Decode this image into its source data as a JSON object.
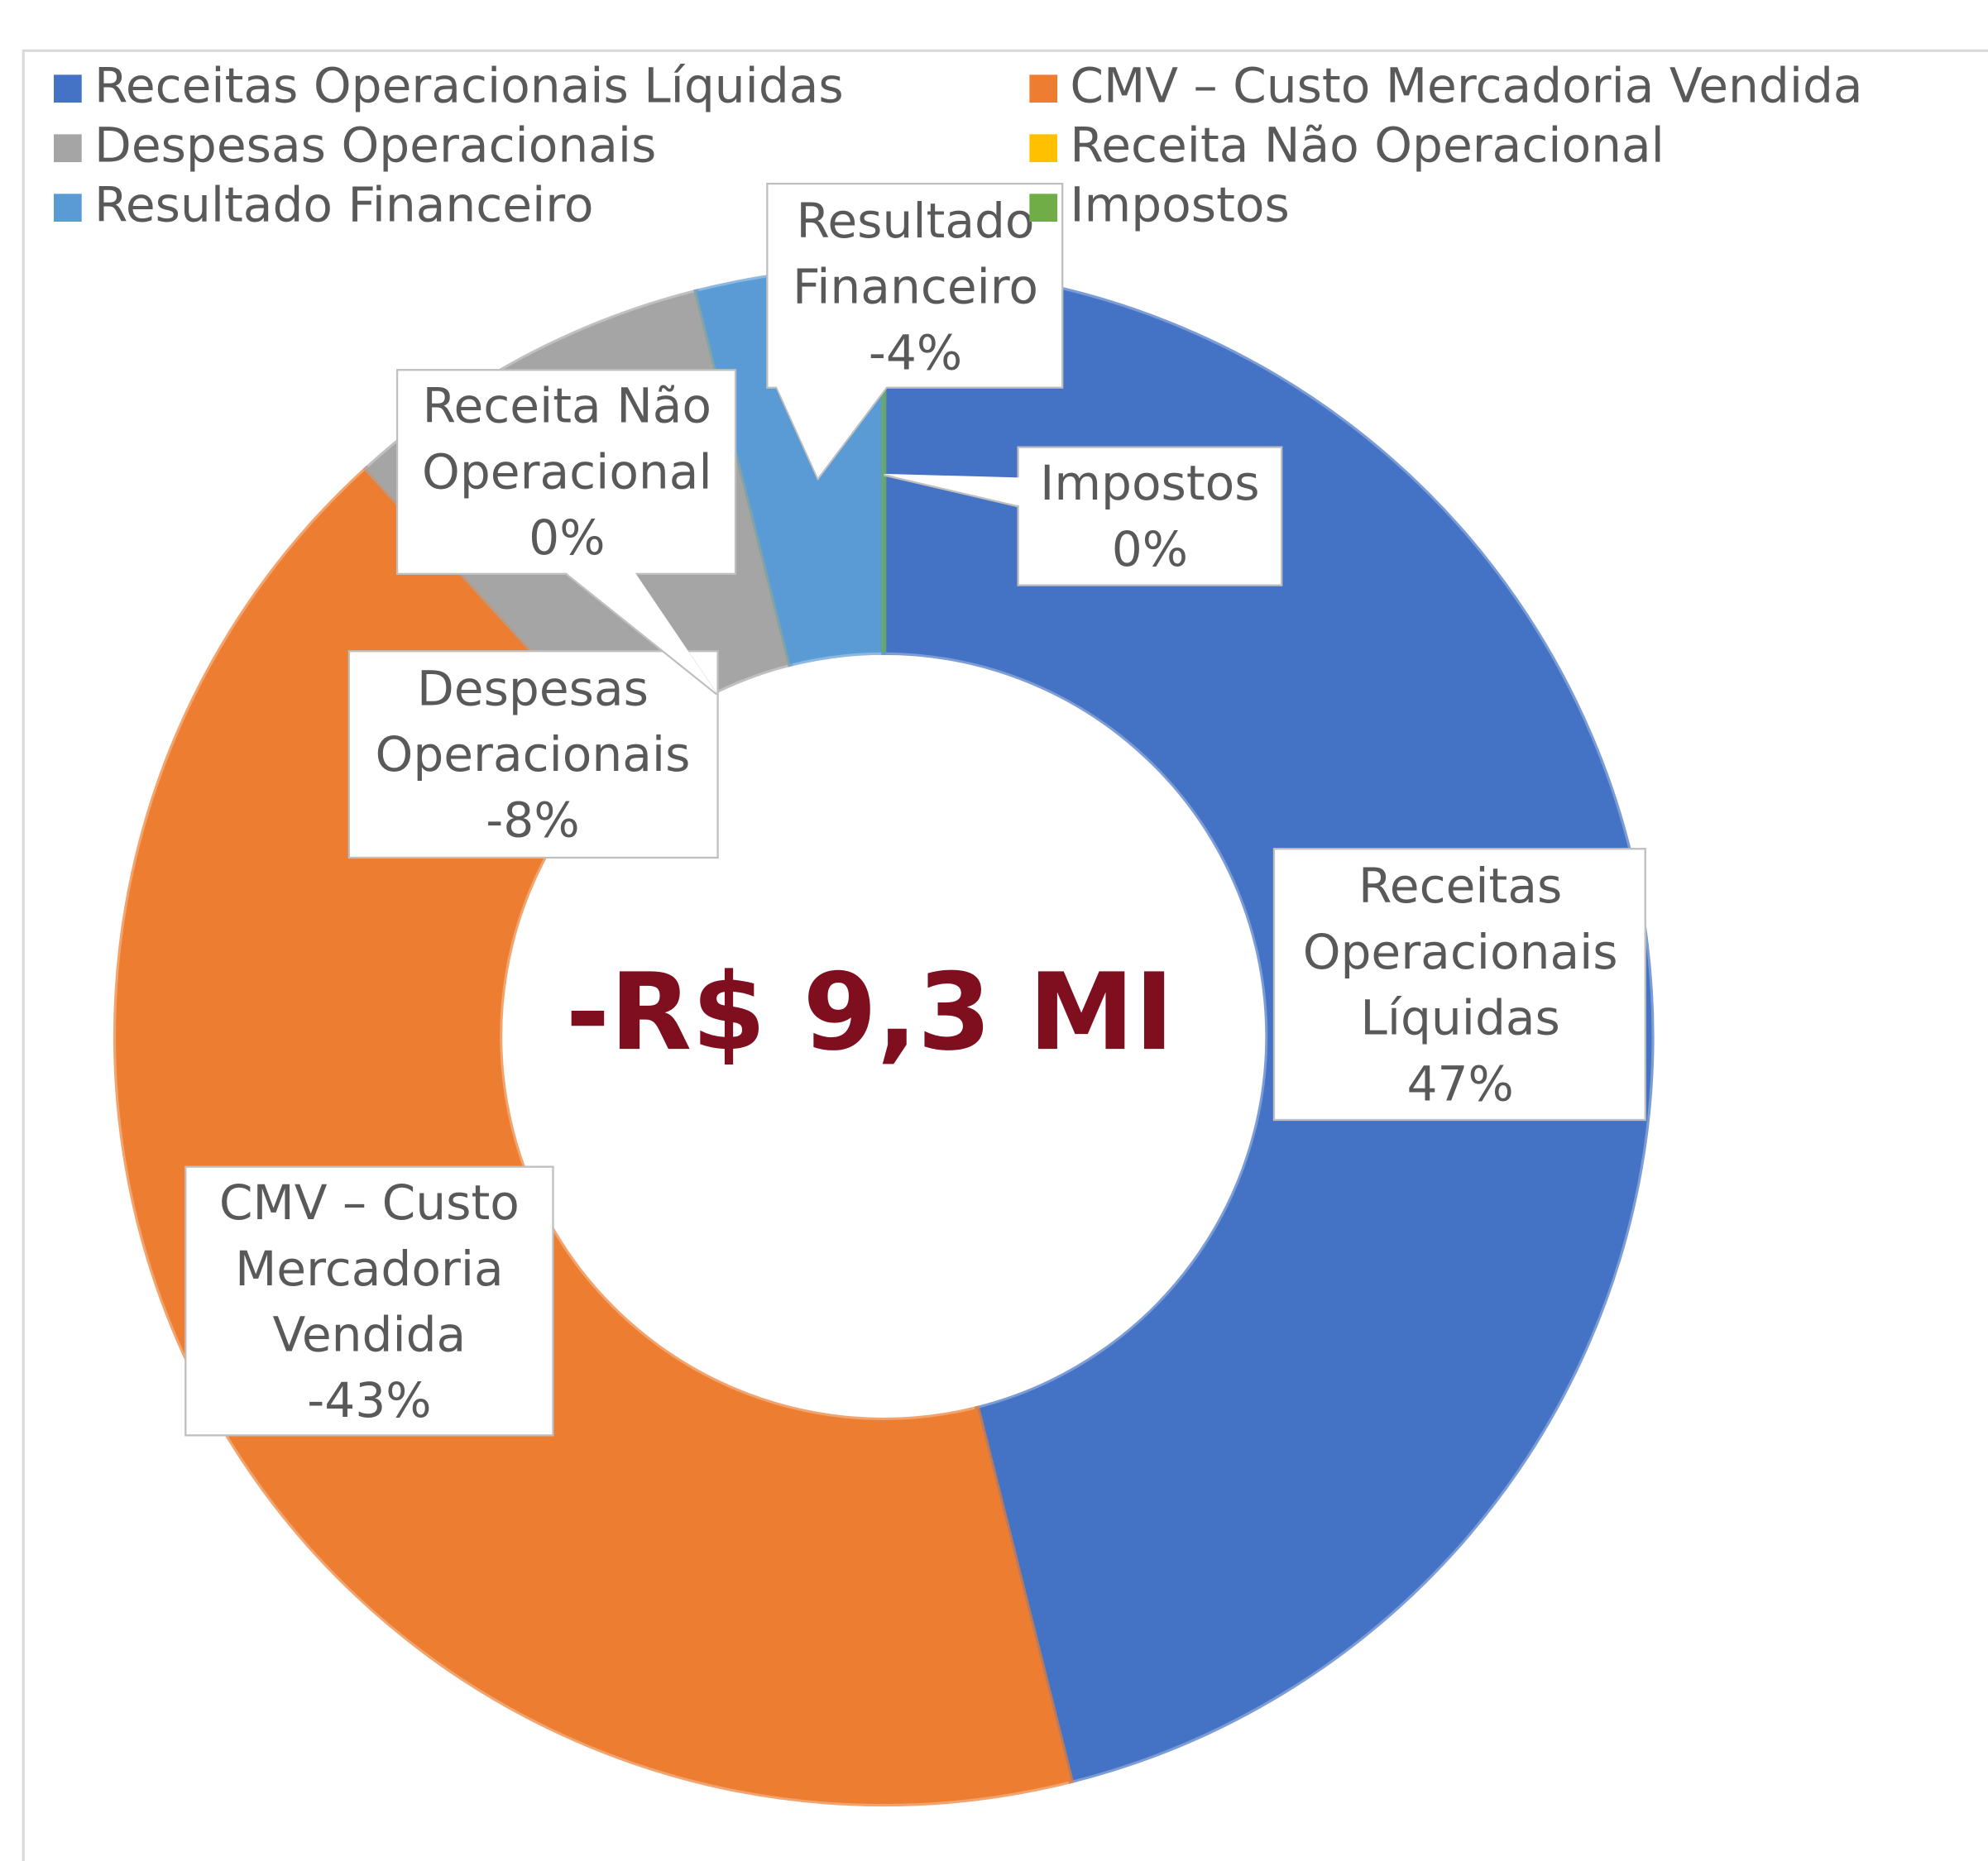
{
  "chart_data": {
    "type": "donut",
    "center_label": "-R$ 9,3 MI",
    "categories": [
      "Receitas Operacionais Líquidas",
      "CMV – Custo Mercadoria Vendida",
      "Despesas Operacionais",
      "Receita Não Operacional",
      "Resultado Financeiro",
      "Impostos"
    ],
    "values": [
      47,
      -43,
      -8,
      0,
      -4,
      0
    ],
    "value_labels": [
      "47%",
      "-43%",
      "-8%",
      "0%",
      "-4%",
      "0%"
    ],
    "colors": [
      "#4472c4",
      "#ed7d31",
      "#a5a5a5",
      "#ffc000",
      "#5b9bd5",
      "#70ad47"
    ],
    "legend": "top"
  }
}
